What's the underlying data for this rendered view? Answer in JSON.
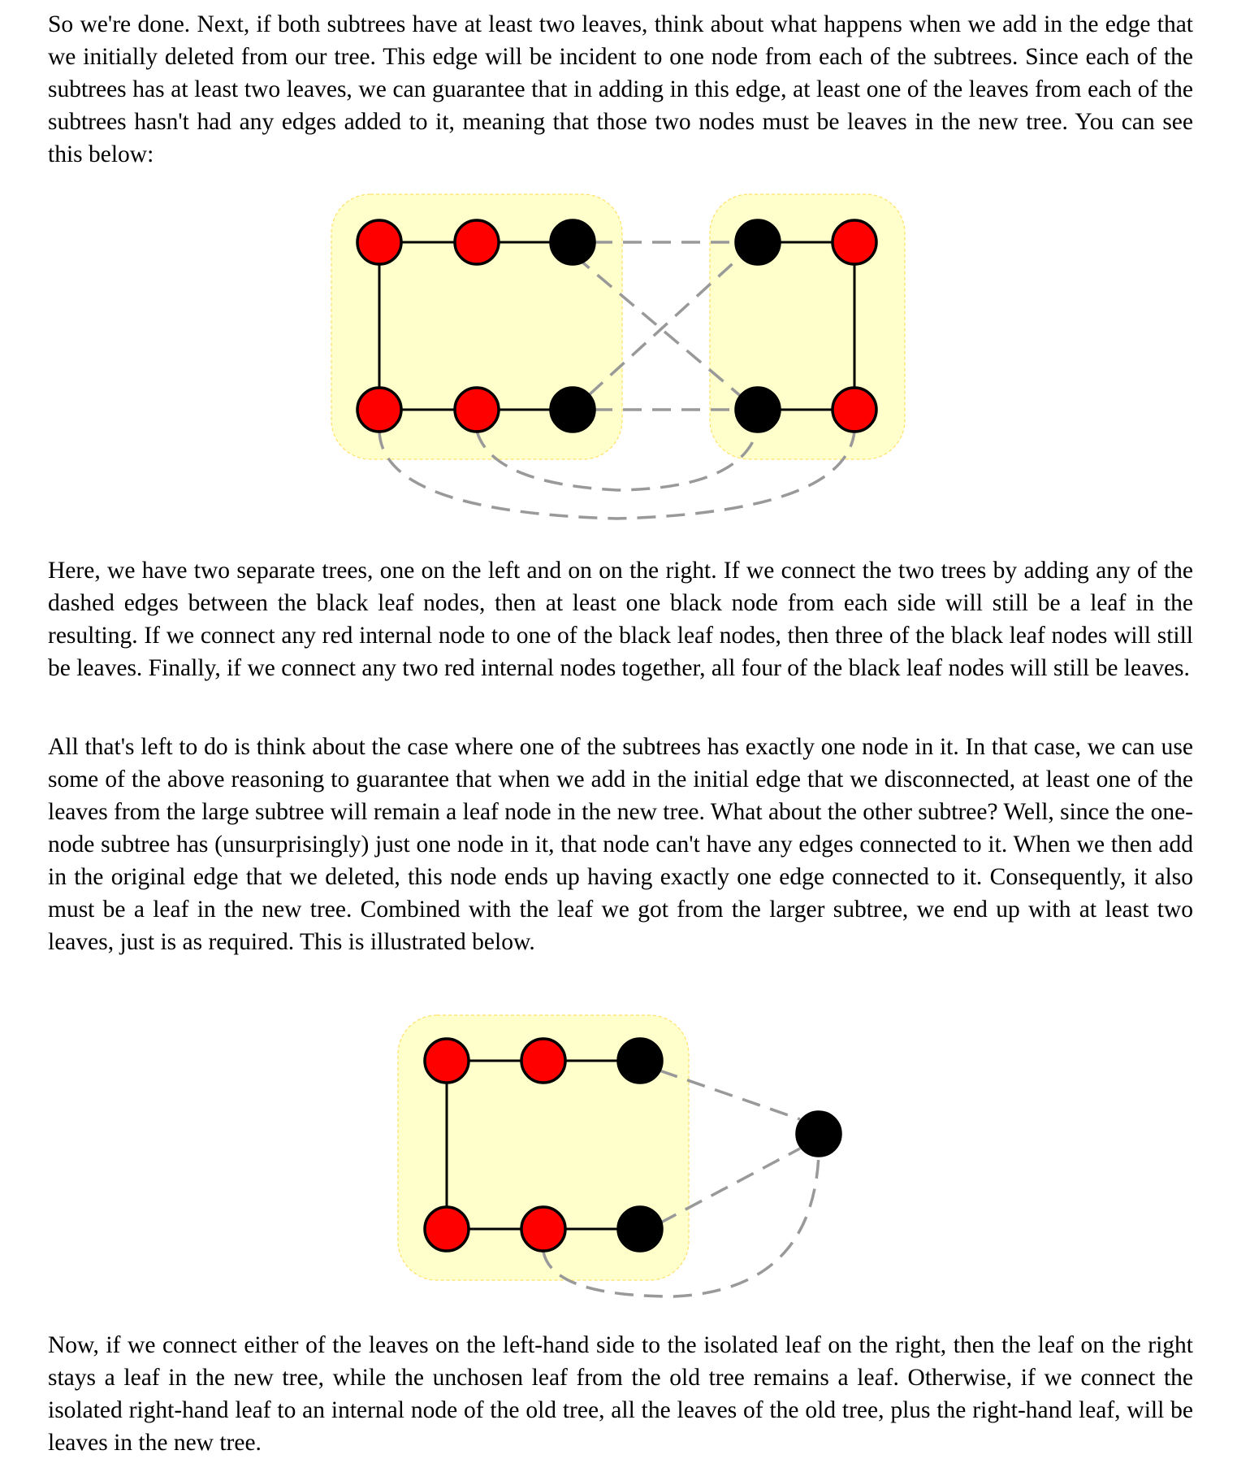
{
  "paragraphs": {
    "p1": "So we're done.  Next, if both subtrees have at least two leaves, think about what happens when we add in the edge that we initially deleted from our tree.  This edge will be incident to one node from each of the sub­trees.  Since each of the subtrees has at least two leaves, we can guarantee that in adding in this edge, at least one of the leaves from each of the subtrees hasn't had any edges added to it, meaning that those two nodes must be leaves in the new tree.  You can see this below:",
    "p2": "Here, we have two separate trees, one on the left and on on the right.  If we connect the two trees by adding any of the dashed edges between the black leaf nodes, then at least one black node from each side will still be a leaf in the resulting.  If we connect any red internal node to one of the black leaf nodes, then three of the black leaf nodes will still be leaves.  Finally, if we connect any two red internal nodes together, all four of the black leaf nodes will still be leaves.",
    "p3": "All that's left to do is think about the case where one of the subtrees has exactly one node in it.  In that case, we can use some of the above reasoning to guarantee that when we add in the initial edge that we discon­nected, at least one of the leaves from the large subtree will remain a leaf node in the new tree.  What about the other subtree?  Well, since the one-node subtree has (unsurprisingly) just one node in it, that node can't have any edges connected to it.  When we then add in the original edge that we deleted, this node ends up having exactly one edge connected to it.  Consequently, it also must be a leaf in the new tree.  Combined with the leaf we got from the larger subtree, we end up with at least two leaves, just is as required.  This is illustrated below.",
    "p4": "Now, if we connect either of the leaves on the left-hand side to the isolated leaf on the right, then the leaf on the right stays a leaf in the new tree, while the unchosen leaf from the old tree remains a leaf.  Otherwise, if we connect the isolated right-hand leaf to an internal node of the old tree, all the leaves of the old tree, plus the right-hand leaf, will be leaves in the new tree."
  },
  "colors": {
    "internal_node": "#ff0000",
    "leaf_node": "#000000",
    "subtree_fill": "#ffffcc",
    "subtree_border": "#ffe066",
    "dashed_edge": "#999999"
  }
}
